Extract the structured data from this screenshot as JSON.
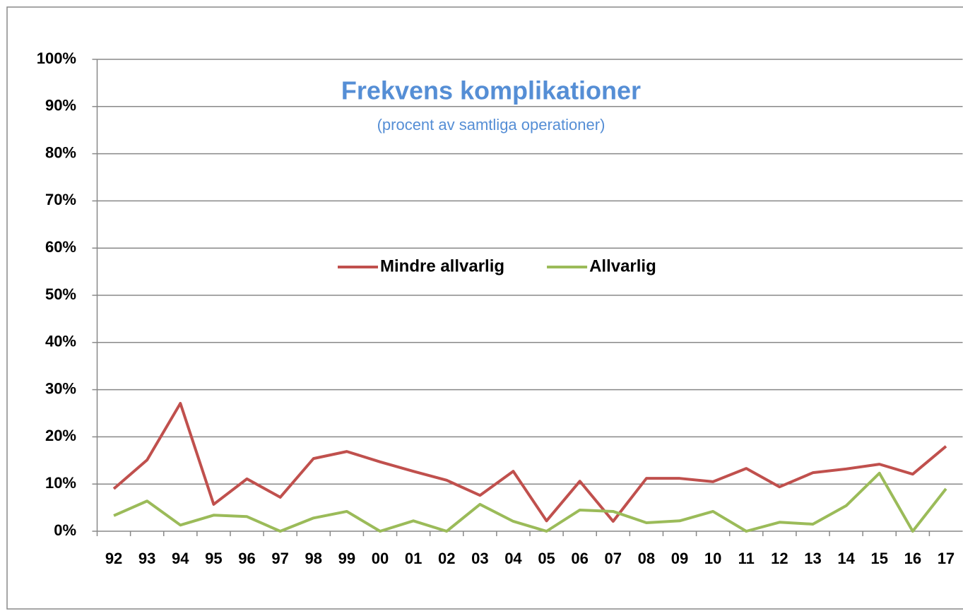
{
  "chart_data": {
    "type": "line",
    "title": "Frekvens komplikationer",
    "subtitle": "(procent av samtliga operationer)",
    "categories": [
      "92",
      "93",
      "94",
      "95",
      "96",
      "97",
      "98",
      "99",
      "00",
      "01",
      "02",
      "03",
      "04",
      "05",
      "06",
      "07",
      "08",
      "09",
      "10",
      "11",
      "12",
      "13",
      "14",
      "15",
      "16",
      "17"
    ],
    "series": [
      {
        "name": "Mindre allvarlig",
        "color": "#c0504d",
        "values": [
          9.0,
          15.1,
          27.1,
          5.7,
          11.1,
          7.2,
          15.4,
          16.9,
          14.7,
          12.7,
          10.8,
          7.6,
          12.7,
          2.2,
          10.6,
          2.1,
          11.2,
          11.2,
          10.5,
          13.3,
          9.4,
          12.4,
          13.2,
          14.2,
          12.1,
          18.0
        ]
      },
      {
        "name": "Allvarlig",
        "color": "#9bbb59",
        "values": [
          3.3,
          6.4,
          1.3,
          3.4,
          3.1,
          0,
          2.8,
          4.2,
          0,
          2.2,
          0,
          5.7,
          2.1,
          0,
          4.5,
          4.2,
          1.8,
          2.2,
          4.2,
          0,
          1.9,
          1.5,
          5.4,
          12.3,
          0,
          9.0
        ]
      }
    ],
    "ylim": [
      0,
      100
    ],
    "yticks": [
      {
        "value": 0,
        "label": "0%"
      },
      {
        "value": 10,
        "label": "10%"
      },
      {
        "value": 20,
        "label": "20%"
      },
      {
        "value": 30,
        "label": "30%"
      },
      {
        "value": 40,
        "label": "40%"
      },
      {
        "value": 50,
        "label": "50%"
      },
      {
        "value": 60,
        "label": "60%"
      },
      {
        "value": 70,
        "label": "70%"
      },
      {
        "value": 80,
        "label": "80%"
      },
      {
        "value": 90,
        "label": "90%"
      },
      {
        "value": 100,
        "label": "100%"
      }
    ],
    "grid": true,
    "legend": "center"
  }
}
